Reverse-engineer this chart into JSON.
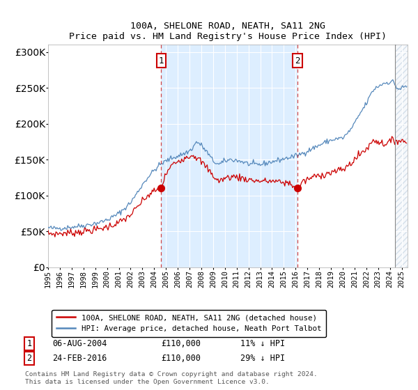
{
  "title": "100A, SHELONE ROAD, NEATH, SA11 2NG",
  "subtitle": "Price paid vs. HM Land Registry's House Price Index (HPI)",
  "legend_line1": "100A, SHELONE ROAD, NEATH, SA11 2NG (detached house)",
  "legend_line2": "HPI: Average price, detached house, Neath Port Talbot",
  "annotation1_date": "06-AUG-2004",
  "annotation1_price": "£110,000",
  "annotation1_hpi": "11% ↓ HPI",
  "annotation2_date": "24-FEB-2016",
  "annotation2_price": "£110,000",
  "annotation2_hpi": "29% ↓ HPI",
  "footer": "Contains HM Land Registry data © Crown copyright and database right 2024.\nThis data is licensed under the Open Government Licence v3.0.",
  "red_line_color": "#cc0000",
  "blue_line_color": "#5588bb",
  "shade_color": "#ddeeff",
  "vline_color": "#cc3333",
  "sale1_x": 2004.6,
  "sale2_x": 2016.15,
  "hatch_start": 2024.42,
  "ylim_min": 0,
  "ylim_max": 310000,
  "xlim_min": 1995.0,
  "xlim_max": 2025.5
}
